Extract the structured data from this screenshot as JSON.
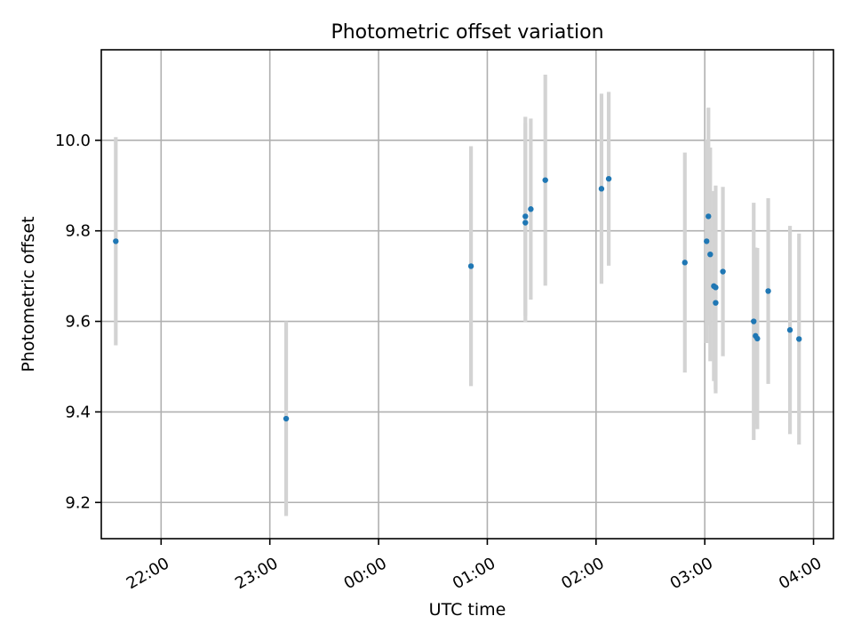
{
  "chart_data": {
    "type": "scatter",
    "title": "Photometric offset variation",
    "xlabel": "UTC time",
    "ylabel": "Photometric offset",
    "x_axis": {
      "scale": "time",
      "range": [
        "21:27",
        "04:11"
      ],
      "ticks": [
        "22:00",
        "23:00",
        "00:00",
        "01:00",
        "02:00",
        "03:00",
        "04:00"
      ],
      "tick_rotation_deg": 30
    },
    "y_axis": {
      "range": [
        9.12,
        10.2
      ],
      "ticks": [
        9.2,
        9.4,
        9.6,
        9.8,
        10.0
      ],
      "tick_labels": [
        "9.2",
        "9.4",
        "9.6",
        "9.8",
        "10.0"
      ]
    },
    "grid": true,
    "legend": "none",
    "marker_color": "#1f77b4",
    "error_bar_color": "#d3d3d3",
    "points": [
      {
        "x": "21:35",
        "y": 9.777,
        "err": 0.23
      },
      {
        "x": "23:09",
        "y": 9.385,
        "err": 0.215
      },
      {
        "x": "00:51",
        "y": 9.722,
        "err": 0.265
      },
      {
        "x": "01:21",
        "y": 9.832,
        "err": 0.22
      },
      {
        "x": "01:21",
        "y": 9.818,
        "err": 0.22
      },
      {
        "x": "01:24",
        "y": 9.848,
        "err": 0.2
      },
      {
        "x": "01:32",
        "y": 9.912,
        "err": 0.233
      },
      {
        "x": "02:03",
        "y": 9.893,
        "err": 0.21
      },
      {
        "x": "02:07",
        "y": 9.915,
        "err": 0.192
      },
      {
        "x": "02:49",
        "y": 9.73,
        "err": 0.243
      },
      {
        "x": "03:01",
        "y": 9.777,
        "err": 0.225
      },
      {
        "x": "03:02",
        "y": 9.832,
        "err": 0.24
      },
      {
        "x": "03:03",
        "y": 9.748,
        "err": 0.236
      },
      {
        "x": "03:05",
        "y": 9.678,
        "err": 0.21
      },
      {
        "x": "03:06",
        "y": 9.675,
        "err": 0.225
      },
      {
        "x": "03:06",
        "y": 9.641,
        "err": 0.2
      },
      {
        "x": "03:10",
        "y": 9.71,
        "err": 0.187
      },
      {
        "x": "03:27",
        "y": 9.6,
        "err": 0.262
      },
      {
        "x": "03:28",
        "y": 9.568,
        "err": 0.195
      },
      {
        "x": "03:29",
        "y": 9.562,
        "err": 0.2
      },
      {
        "x": "03:35",
        "y": 9.667,
        "err": 0.205
      },
      {
        "x": "03:47",
        "y": 9.581,
        "err": 0.23
      },
      {
        "x": "03:52",
        "y": 9.561,
        "err": 0.233
      }
    ]
  }
}
